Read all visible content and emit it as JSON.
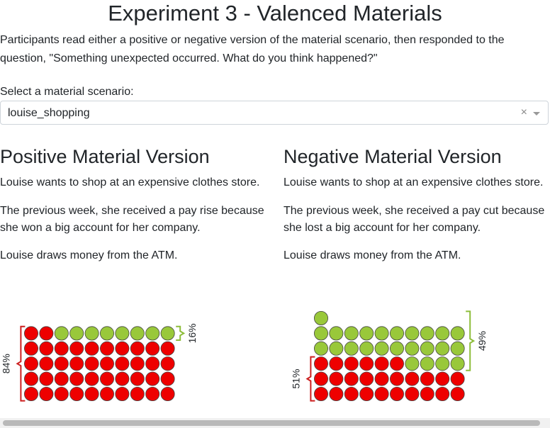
{
  "page": {
    "title": "Experiment 3 - Valenced Materials",
    "intro": "Participants read either a positive or negative version of the material scenario, then responded to the question, \"Something unexpected occurred. What do you think happened?\""
  },
  "scenario_select": {
    "label": "Select a material scenario:",
    "value": "louise_shopping",
    "clear_glyph": "×"
  },
  "positive": {
    "heading": "Positive Material Version",
    "paragraphs": [
      "Louise wants to shop at an expensive clothes store.",
      "The previous week, she received a pay rise because she won a big account for her company.",
      "Louise draws money from the ATM."
    ]
  },
  "negative": {
    "heading": "Negative Material Version",
    "paragraphs": [
      "Louise wants to shop at an expensive clothes store.",
      "The previous week, she received a pay cut because she lost a big account for her company.",
      "Louise draws money from the ATM."
    ]
  },
  "chart_data": [
    {
      "type": "waffle",
      "title": "",
      "total": 50,
      "columns": 10,
      "series": [
        {
          "name": "",
          "count": 42,
          "percent_label": "84%",
          "color": "#ee0000"
        },
        {
          "name": "",
          "count": 8,
          "percent_label": "16%",
          "color": "#99c83a"
        }
      ]
    },
    {
      "type": "waffle",
      "title": "",
      "total": 51,
      "columns": 10,
      "series": [
        {
          "name": "",
          "count": 26,
          "percent_label": "51%",
          "color": "#ee0000"
        },
        {
          "name": "",
          "count": 25,
          "percent_label": "49%",
          "color": "#99c83a"
        }
      ]
    }
  ],
  "colors": {
    "red": "#ee0000",
    "green": "#99c83a",
    "red_bracket": "#cc1f1f",
    "green_bracket": "#8dbd3a"
  }
}
